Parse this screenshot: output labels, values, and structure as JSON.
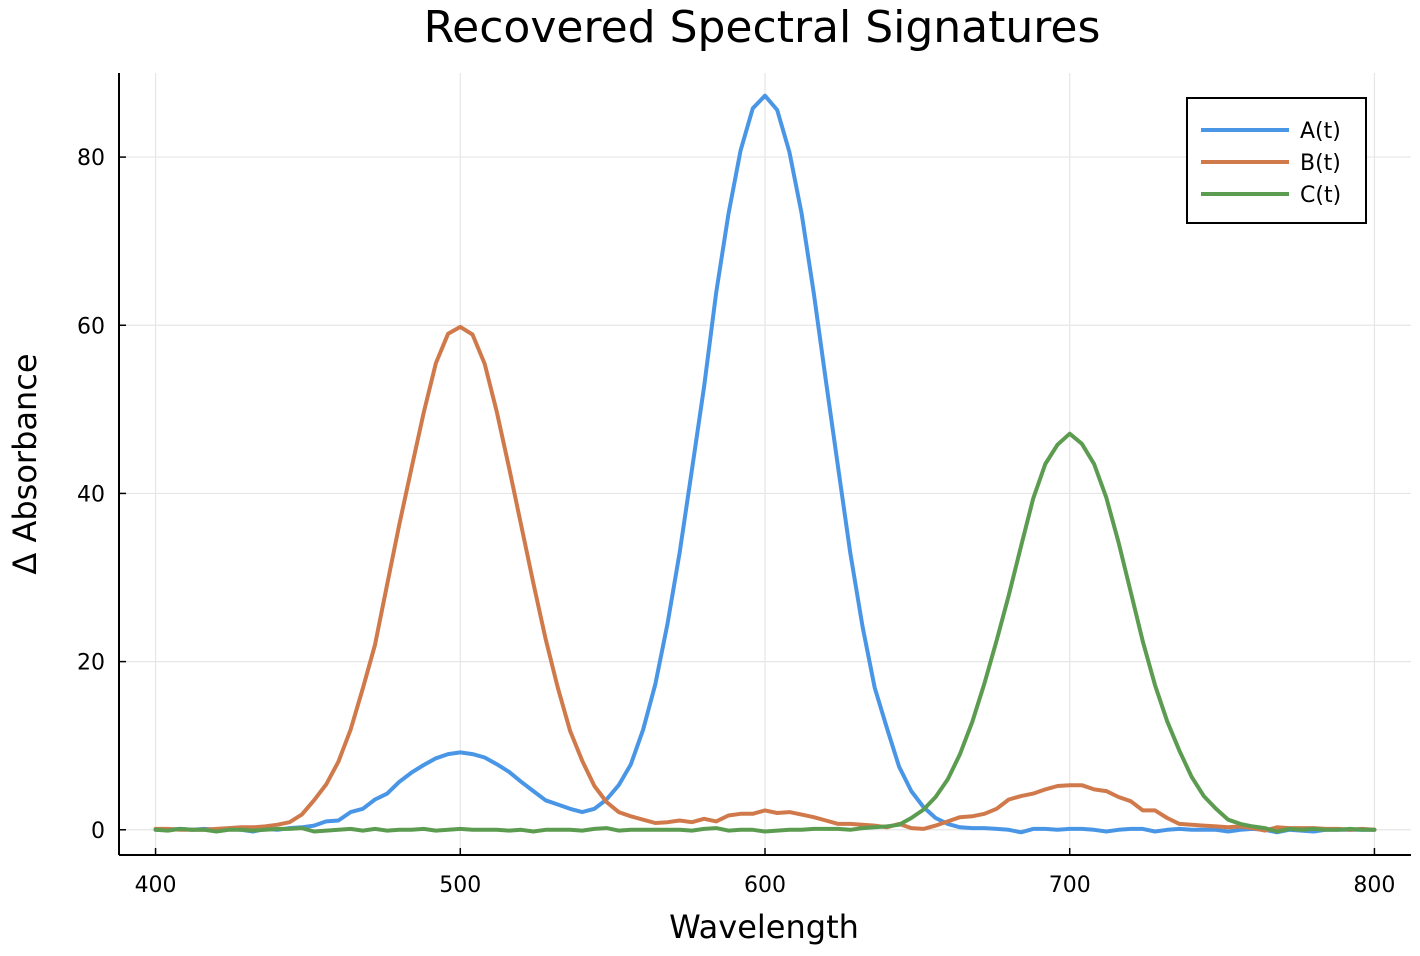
{
  "chart_data": {
    "type": "line",
    "title": "Recovered Spectral Signatures",
    "xlabel": "Wavelength",
    "ylabel": "Δ Absorbance",
    "xlim": [
      388,
      812
    ],
    "ylim": [
      -3,
      90
    ],
    "x_ticks": [
      400,
      500,
      600,
      700,
      800
    ],
    "y_ticks": [
      0,
      20,
      40,
      60,
      80
    ],
    "grid": true,
    "legend_position": "top-right",
    "x": [
      400,
      404,
      408,
      412,
      416,
      420,
      424,
      428,
      432,
      436,
      440,
      444,
      448,
      452,
      456,
      460,
      464,
      468,
      472,
      476,
      480,
      484,
      488,
      492,
      496,
      500,
      504,
      508,
      512,
      516,
      520,
      524,
      528,
      532,
      536,
      540,
      544,
      548,
      552,
      556,
      560,
      564,
      568,
      572,
      576,
      580,
      584,
      588,
      592,
      596,
      600,
      604,
      608,
      612,
      616,
      620,
      624,
      628,
      632,
      636,
      640,
      644,
      648,
      652,
      656,
      660,
      664,
      668,
      672,
      676,
      680,
      684,
      688,
      692,
      696,
      700,
      704,
      708,
      712,
      716,
      720,
      724,
      728,
      732,
      736,
      740,
      744,
      748,
      752,
      756,
      760,
      764,
      768,
      772,
      776,
      780,
      784,
      788,
      792,
      796,
      800
    ],
    "series": [
      {
        "name": "A(t)",
        "color": "#4a96e6",
        "values": [
          0.0,
          0.0,
          0.1,
          0.0,
          0.1,
          0.0,
          0.1,
          0.0,
          -0.2,
          0.1,
          0.0,
          0.2,
          0.3,
          0.5,
          1.0,
          1.1,
          2.1,
          2.5,
          3.6,
          4.3,
          5.7,
          6.8,
          7.7,
          8.5,
          9.0,
          9.2,
          9.0,
          8.6,
          7.8,
          6.9,
          5.7,
          4.6,
          3.5,
          3.0,
          2.5,
          2.1,
          2.5,
          3.6,
          5.3,
          7.8,
          11.9,
          17.3,
          24.5,
          33.0,
          42.8,
          52.7,
          63.9,
          73.2,
          80.8,
          85.8,
          87.3,
          85.6,
          80.6,
          73.3,
          63.8,
          53.4,
          43.1,
          32.9,
          24.2,
          16.9,
          12.1,
          7.5,
          4.6,
          2.7,
          1.4,
          0.7,
          0.3,
          0.2,
          0.2,
          0.1,
          0.0,
          -0.3,
          0.1,
          0.1,
          0.0,
          0.1,
          0.1,
          0.0,
          -0.2,
          0.0,
          0.1,
          0.1,
          -0.2,
          0.0,
          0.1,
          0.0,
          0.0,
          0.0,
          -0.2,
          0.0,
          0.1,
          0.0,
          -0.3,
          0.0,
          -0.1,
          -0.2,
          0.0,
          0.0,
          0.0,
          0.0,
          0.0
        ]
      },
      {
        "name": "B(t)",
        "color": "#d07a4c",
        "values": [
          0.1,
          0.1,
          0.0,
          0.0,
          0.0,
          0.1,
          0.2,
          0.3,
          0.3,
          0.4,
          0.6,
          0.9,
          1.8,
          3.5,
          5.4,
          8.1,
          11.9,
          16.8,
          22.0,
          29.2,
          36.3,
          43.0,
          49.6,
          55.5,
          59.0,
          59.8,
          58.9,
          55.4,
          49.7,
          43.1,
          36.2,
          29.3,
          22.7,
          16.9,
          11.8,
          8.2,
          5.2,
          3.3,
          2.1,
          1.6,
          1.2,
          0.8,
          0.9,
          1.1,
          0.9,
          1.3,
          1.0,
          1.7,
          1.9,
          1.9,
          2.3,
          2.0,
          2.1,
          1.8,
          1.5,
          1.1,
          0.7,
          0.7,
          0.6,
          0.5,
          0.3,
          0.7,
          0.2,
          0.1,
          0.5,
          1.0,
          1.5,
          1.6,
          1.9,
          2.5,
          3.6,
          4.0,
          4.3,
          4.8,
          5.2,
          5.3,
          5.3,
          4.8,
          4.6,
          3.9,
          3.4,
          2.3,
          2.3,
          1.4,
          0.7,
          0.6,
          0.5,
          0.4,
          0.3,
          0.4,
          0.2,
          -0.1,
          0.3,
          0.2,
          0.2,
          0.2,
          0.1,
          0.1,
          0.0,
          0.1,
          0.0
        ]
      },
      {
        "name": "C(t)",
        "color": "#5c9c50",
        "values": [
          0.0,
          -0.1,
          0.1,
          0.0,
          0.0,
          -0.2,
          0.0,
          0.0,
          -0.1,
          0.0,
          0.1,
          0.1,
          0.2,
          -0.2,
          -0.1,
          0.0,
          0.1,
          -0.1,
          0.1,
          -0.1,
          0.0,
          0.0,
          0.1,
          -0.1,
          0.0,
          0.1,
          0.0,
          0.0,
          0.0,
          -0.1,
          0.0,
          -0.2,
          0.0,
          0.0,
          0.0,
          -0.1,
          0.1,
          0.2,
          -0.1,
          0.0,
          0.0,
          0.0,
          0.0,
          0.0,
          -0.1,
          0.1,
          0.2,
          -0.1,
          0.0,
          0.0,
          -0.2,
          -0.1,
          0.0,
          0.0,
          0.1,
          0.1,
          0.1,
          0.0,
          0.2,
          0.3,
          0.4,
          0.6,
          1.4,
          2.4,
          3.9,
          6.0,
          9.0,
          12.8,
          17.4,
          22.5,
          27.9,
          33.7,
          39.4,
          43.5,
          45.8,
          47.1,
          45.9,
          43.5,
          39.5,
          34.2,
          28.3,
          22.4,
          17.2,
          12.9,
          9.4,
          6.3,
          4.0,
          2.5,
          1.2,
          0.7,
          0.4,
          0.2,
          -0.2,
          0.1,
          0.0,
          0.1,
          0.0,
          0.0,
          0.1,
          0.0,
          0.0
        ]
      }
    ]
  }
}
